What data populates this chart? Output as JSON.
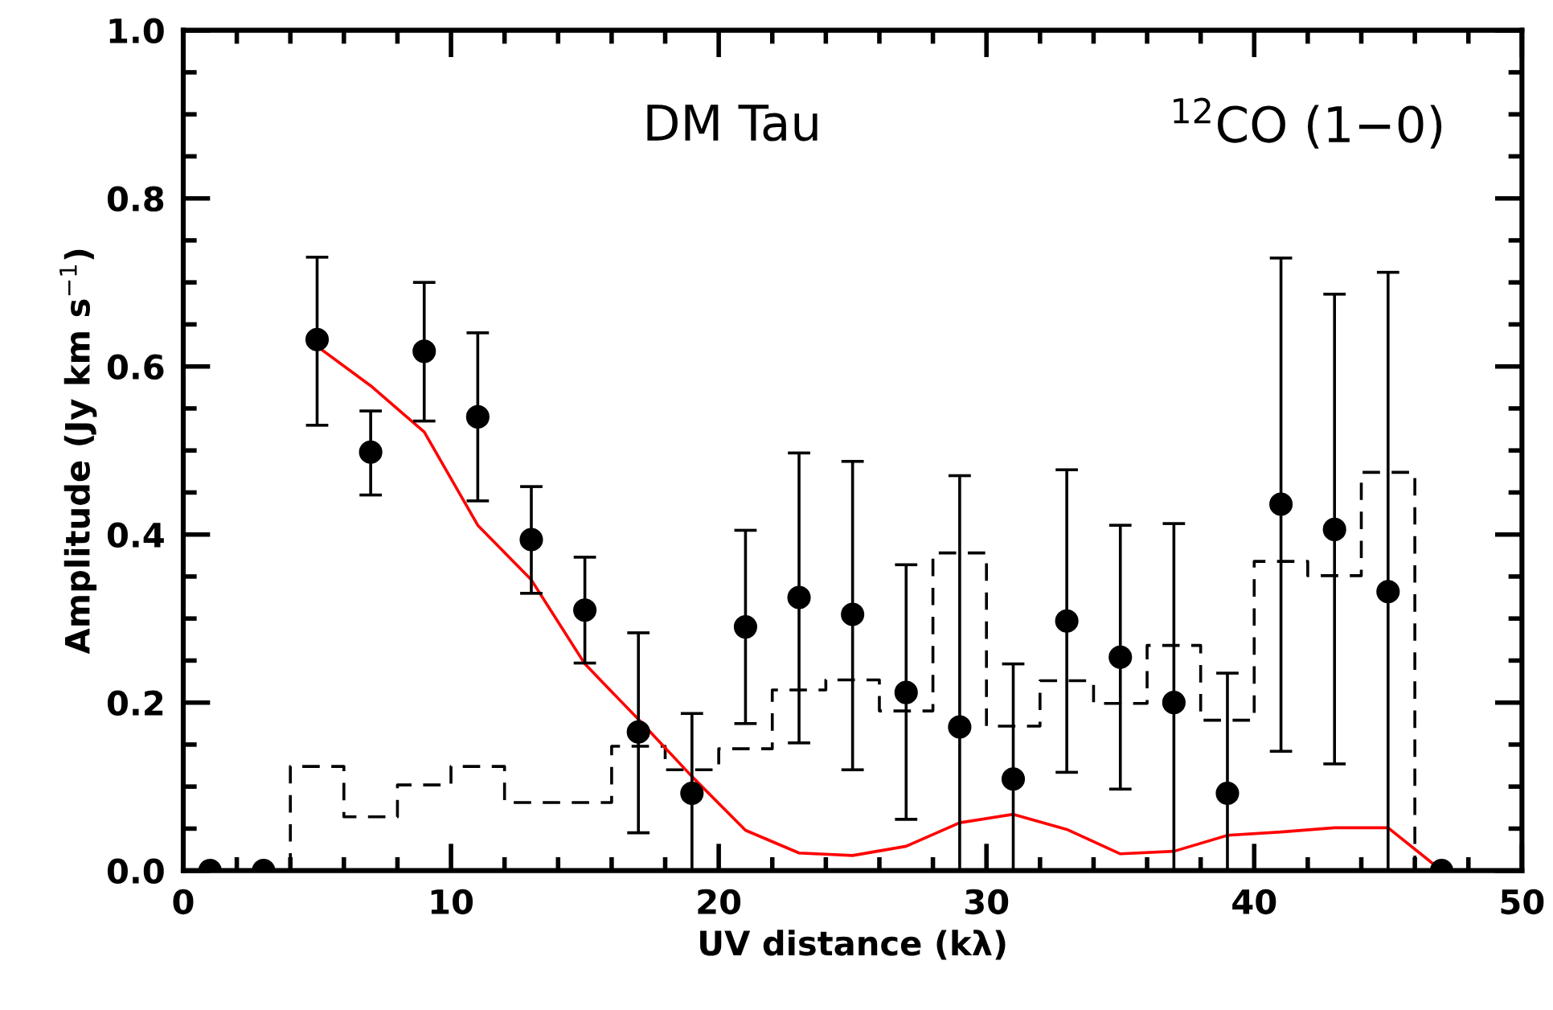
{
  "chart_data": {
    "type": "scatter",
    "xlabel": "UV distance (kλ)",
    "ylabel": "Amplitude (Jy km s$^{−1}$)",
    "annotations": [
      "DM Tau",
      "$^{12}$CO (1−0)"
    ],
    "xlim": [
      0,
      50
    ],
    "xticks": [
      0,
      10,
      20,
      30,
      40,
      50
    ],
    "ylim": [
      0,
      1.0
    ],
    "yticks": [
      {
        "value": 0,
        "label": "0.0"
      },
      {
        "value": 0.2,
        "label": "0.2"
      },
      {
        "value": 0.4,
        "label": "0.4"
      },
      {
        "value": 0.6,
        "label": "0.6"
      },
      {
        "value": 0.8,
        "label": "0.8"
      },
      {
        "value": 1.0,
        "label": "1.0"
      }
    ],
    "grid": false,
    "series": [
      {
        "type": "step",
        "color": "#000000",
        "line_style": "dashed",
        "x": [
          4,
          4,
          6,
          8,
          10,
          12,
          14,
          16,
          18,
          20,
          22,
          24,
          26,
          28,
          30,
          32,
          34,
          36,
          38,
          40,
          42,
          44,
          46
        ],
        "values": [
          0,
          0.124,
          0.064,
          0.102,
          0.124,
          0.081,
          0.081,
          0.148,
          0.12,
          0.145,
          0.215,
          0.227,
          0.19,
          0.378,
          0.172,
          0.226,
          0.199,
          0.268,
          0.179,
          0.368,
          0.351,
          0.474,
          0
        ]
      },
      {
        "type": "line",
        "color": "#ff0000",
        "line_style": "solid",
        "marker": "none",
        "x": [
          5,
          7,
          9,
          11,
          13,
          15,
          17,
          19,
          21,
          23,
          25,
          27,
          29,
          31,
          33,
          35,
          37,
          39,
          41,
          43,
          45,
          47
        ],
        "values": [
          0.624,
          0.577,
          0.522,
          0.411,
          0.346,
          0.246,
          0.18,
          0.112,
          0.048,
          0.021,
          0.018,
          0.029,
          0.057,
          0.067,
          0.049,
          0.02,
          0.023,
          0.042,
          0.046,
          0.051,
          0.051,
          0
        ]
      },
      {
        "color": "#000000",
        "marker": "circle",
        "x": [
          1,
          3,
          5,
          7,
          9,
          11,
          13,
          15,
          17,
          19,
          21,
          23,
          25,
          27,
          29,
          31,
          33,
          35,
          37,
          39,
          41,
          43,
          45,
          47
        ],
        "values": [
          0,
          0,
          0.632,
          0.498,
          0.618,
          0.54,
          0.394,
          0.31,
          0.165,
          0.092,
          0.29,
          0.325,
          0.305,
          0.212,
          0.171,
          0.109,
          0.297,
          0.254,
          0.2,
          0.092,
          0.436,
          0.406,
          0.332,
          0
        ],
        "errors": [
          null,
          null,
          [
            0.53,
            0.73
          ],
          [
            0.447,
            0.547
          ],
          [
            0.535,
            0.7
          ],
          [
            0.44,
            0.64
          ],
          [
            0.33,
            0.457
          ],
          [
            0.247,
            0.373
          ],
          [
            0.045,
            0.283
          ],
          [
            0,
            0.187
          ],
          [
            0.175,
            0.405
          ],
          [
            0.152,
            0.497
          ],
          [
            0.12,
            0.487
          ],
          [
            0.061,
            0.364
          ],
          [
            0,
            0.47
          ],
          [
            0,
            0.246
          ],
          [
            0.117,
            0.477
          ],
          [
            0.097,
            0.411
          ],
          [
            0,
            0.413
          ],
          [
            0,
            0.235
          ],
          [
            0.142,
            0.729
          ],
          [
            0.127,
            0.686
          ],
          [
            0,
            0.712
          ],
          null
        ]
      }
    ]
  }
}
